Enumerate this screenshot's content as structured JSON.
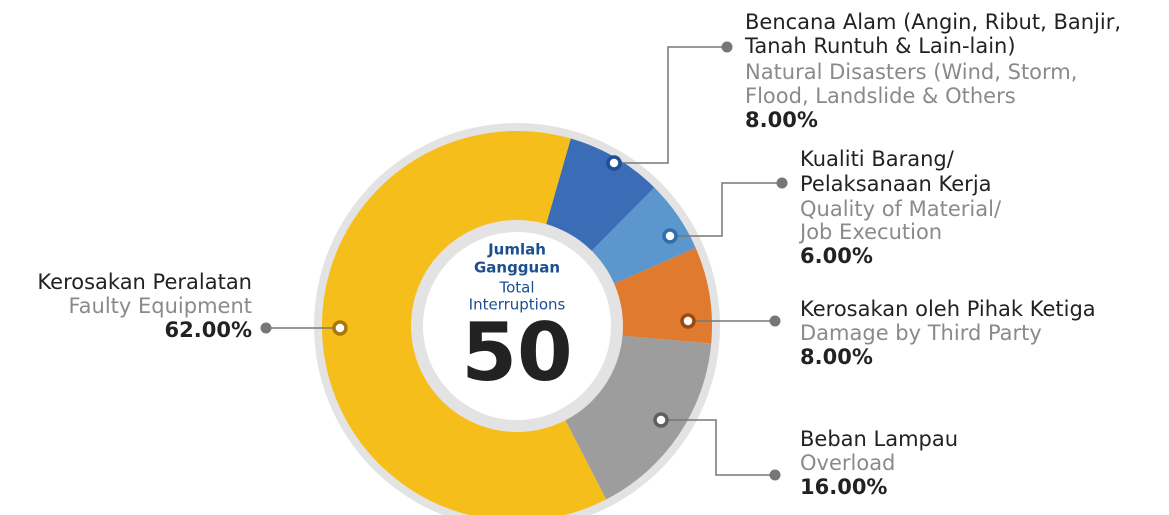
{
  "chart_data": {
    "type": "donut",
    "center_title": [
      "Jumlah",
      "Gangguan"
    ],
    "center_subtitle": [
      "Total",
      "Interruptions"
    ],
    "center_value": 50,
    "categories": [
      [
        "Bencana Alam (Angin, Ribut, Banjir,",
        "Tanah Runtuh & Lain-lain)"
      ],
      [
        "Kualiti Barang/",
        "Pelaksanaan Kerja"
      ],
      [
        "Kerosakan oleh Pihak Ketiga"
      ],
      [
        "Beban Lampau"
      ],
      [
        "Kerosakan Peralatan"
      ]
    ],
    "categories_en": [
      [
        "Natural Disasters (Wind, Storm,",
        "Flood, Landslide & Others"
      ],
      [
        "Quality of Material/",
        "Job Execution"
      ],
      [
        "Damage by Third Party"
      ],
      [
        "Overload"
      ],
      [
        "Faulty Equipment"
      ]
    ],
    "values": [
      8,
      6,
      8,
      16,
      62
    ],
    "value_labels": [
      "8.00%",
      "6.00%",
      "8.00%",
      "16.00%",
      "62.00%"
    ],
    "colors": [
      "#3a6db5",
      "#5b96cc",
      "#e07a2e",
      "#9d9d9d",
      "#f6be1a"
    ]
  }
}
